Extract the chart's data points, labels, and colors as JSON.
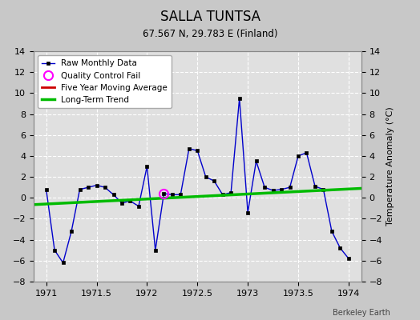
{
  "title": "SALLA TUNTSA",
  "subtitle": "67.567 N, 29.783 E (Finland)",
  "ylabel": "Temperature Anomaly (°C)",
  "credit": "Berkeley Earth",
  "xlim": [
    1970.875,
    1974.125
  ],
  "ylim": [
    -8,
    14
  ],
  "yticks": [
    -8,
    -6,
    -4,
    -2,
    0,
    2,
    4,
    6,
    8,
    10,
    12,
    14
  ],
  "xticks": [
    1971,
    1971.5,
    1972,
    1972.5,
    1973,
    1973.5,
    1974
  ],
  "xticklabels": [
    "1971",
    "1971.5",
    "1972",
    "1972.5",
    "1973",
    "1973.5",
    "1974"
  ],
  "background_color": "#c8c8c8",
  "plot_bg_color": "#e0e0e0",
  "grid_color": "#ffffff",
  "raw_x": [
    1971.0,
    1971.083,
    1971.167,
    1971.25,
    1971.333,
    1971.417,
    1971.5,
    1971.583,
    1971.667,
    1971.75,
    1971.833,
    1971.917,
    1972.0,
    1972.083,
    1972.167,
    1972.25,
    1972.333,
    1972.417,
    1972.5,
    1972.583,
    1972.667,
    1972.75,
    1972.833,
    1972.917,
    1973.0,
    1973.083,
    1973.167,
    1973.25,
    1973.333,
    1973.417,
    1973.5,
    1973.583,
    1973.667,
    1973.75,
    1973.833,
    1973.917,
    1974.0
  ],
  "raw_y": [
    0.8,
    -5.0,
    -6.2,
    -3.2,
    0.8,
    1.0,
    1.2,
    1.0,
    0.3,
    -0.5,
    -0.3,
    -0.8,
    3.0,
    -5.0,
    0.4,
    0.3,
    0.3,
    4.7,
    4.5,
    2.0,
    1.6,
    0.3,
    0.5,
    9.5,
    -1.4,
    3.5,
    1.0,
    0.7,
    0.8,
    1.0,
    4.0,
    4.3,
    1.1,
    0.8,
    -3.2,
    -4.8,
    -5.8
  ],
  "qc_fail_x": [
    1972.167
  ],
  "qc_fail_y": [
    0.4
  ],
  "trend_x": [
    1970.875,
    1974.125
  ],
  "trend_y": [
    -0.65,
    0.9
  ],
  "line_color": "#0000cc",
  "marker_color": "#000000",
  "trend_color": "#00bb00",
  "five_year_color": "#cc0000",
  "qc_color": "#ff00ff"
}
